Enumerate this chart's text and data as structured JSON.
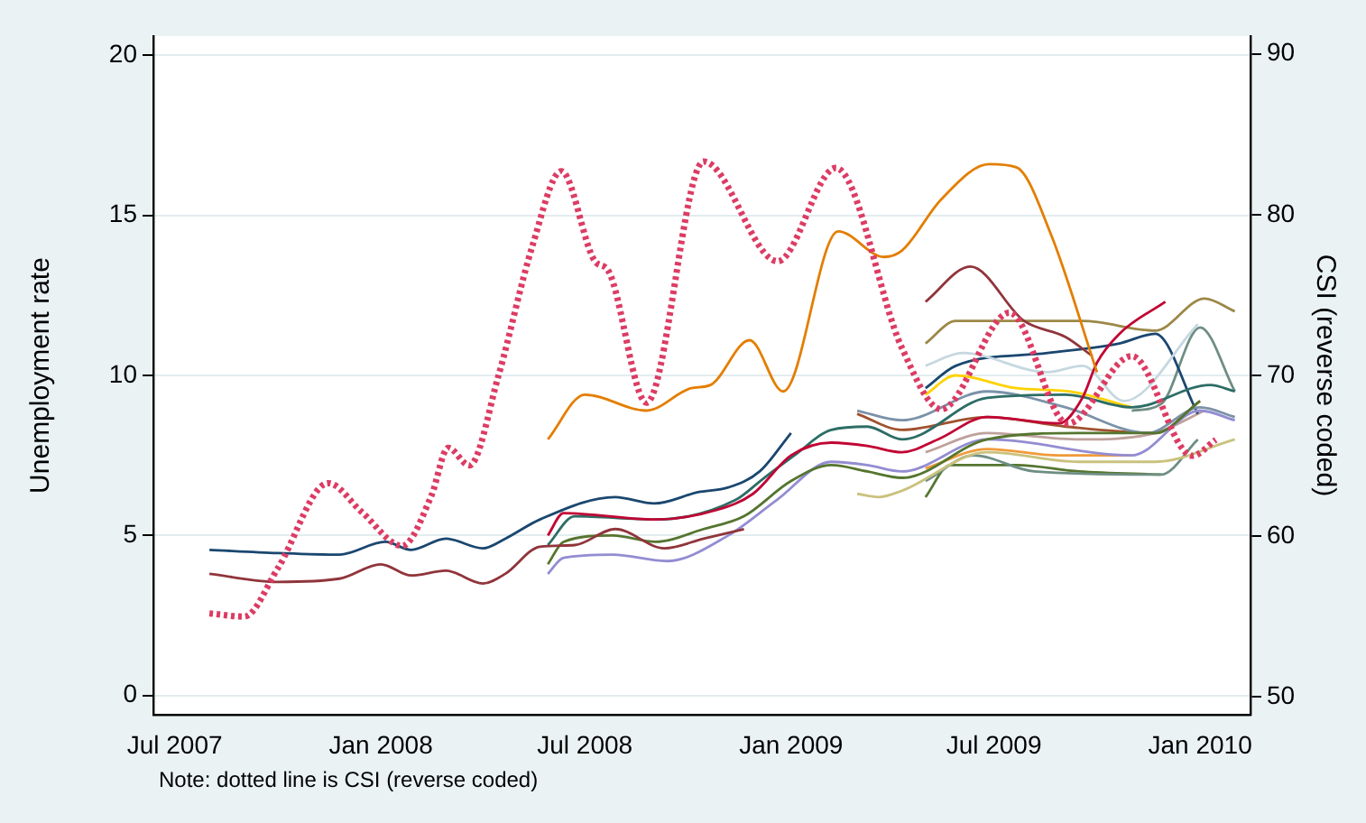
{
  "chart_data": {
    "type": "line",
    "ylabel": "Unemployment rate",
    "y2label": "CSI (reverse coded)",
    "annotations": [
      "Note: dotted line is CSI (reverse coded)"
    ],
    "xlim": [
      "2007-06-12",
      "2010-02-15"
    ],
    "xticks": [
      {
        "value": "2007-07",
        "label": "Jul 2007"
      },
      {
        "value": "2008-01",
        "label": "Jan 2008"
      },
      {
        "value": "2008-07",
        "label": "Jul 2008"
      },
      {
        "value": "2009-01",
        "label": "Jan 2009"
      },
      {
        "value": "2009-07",
        "label": "Jul 2009"
      },
      {
        "value": "2010-01",
        "label": "Jan 2010"
      }
    ],
    "ylim": [
      -0.6,
      20.6
    ],
    "yticks": [
      0,
      5,
      10,
      15,
      20
    ],
    "y2lim": [
      48.9,
      91.1
    ],
    "y2ticks": [
      50,
      60,
      70,
      80,
      90
    ],
    "grid": "y",
    "legend": false,
    "marker": "none",
    "series": [
      {
        "color": "#dc3c64",
        "axis": "y2",
        "line_style": "dotted",
        "x": [
          "2007-08-01",
          "2007-09-01",
          "2007-10-01",
          "2007-11-15",
          "2007-12-15",
          "2008-01-20",
          "2008-02-15",
          "2008-03-01",
          "2008-03-20",
          "2008-04-15",
          "2008-05-15",
          "2008-06-10",
          "2008-07-10",
          "2008-07-22",
          "2008-08-25",
          "2008-10-15",
          "2008-12-20",
          "2009-02-10",
          "2009-04-10",
          "2009-05-15",
          "2009-07-15",
          "2009-09-05",
          "2009-11-01",
          "2009-12-25",
          "2010-01-15"
        ],
        "values": [
          55.2,
          55.0,
          58,
          63.3,
          61.5,
          59.4,
          62.5,
          65.5,
          64.4,
          70,
          78,
          82.7,
          77.1,
          76.5,
          68.3,
          83.3,
          77.1,
          82.9,
          71.7,
          67.9,
          73.9,
          67,
          71.2,
          65.0,
          66.0
        ]
      },
      {
        "color": "#1a476f",
        "x": [
          "2007-08-01",
          "2007-10-01",
          "2007-11-25",
          "2008-01-05",
          "2008-01-28",
          "2008-02-28",
          "2008-04-01",
          "2008-04-21",
          "2008-05-22",
          "2008-07-28",
          "2008-09-01",
          "2008-10-10",
          "2008-11-06",
          "2008-12-04",
          "2009-01-01"
        ],
        "values": [
          4.55,
          4.45,
          4.4,
          4.8,
          4.55,
          4.9,
          4.6,
          4.9,
          5.5,
          6.2,
          6.0,
          6.35,
          6.5,
          7.0,
          8.2
        ]
      },
      {
        "color": "#90353b",
        "x": [
          "2007-08-01",
          "2007-10-01",
          "2007-11-25",
          "2008-01-01",
          "2008-01-28",
          "2008-02-28",
          "2008-04-01",
          "2008-04-21",
          "2008-05-22",
          "2008-06-22",
          "2008-07-28",
          "2008-09-10",
          "2008-10-15",
          "2008-11-20"
        ],
        "values": [
          3.8,
          3.55,
          3.65,
          4.1,
          3.75,
          3.9,
          3.5,
          3.8,
          4.65,
          4.7,
          5.2,
          4.6,
          4.9,
          5.2
        ]
      },
      {
        "color": "#e37e00",
        "x": [
          "2008-05-29",
          "2008-07-01",
          "2008-08-25",
          "2008-10-04",
          "2008-10-21",
          "2008-11-25",
          "2008-12-25",
          "2009-02-12",
          "2009-03-25",
          "2009-04-10",
          "2009-05-15",
          "2009-06-27",
          "2009-07-21",
          "2009-08-21",
          "2009-10-01"
        ],
        "values": [
          8.0,
          9.4,
          8.9,
          9.6,
          9.7,
          11.1,
          9.5,
          14.5,
          13.7,
          13.9,
          15.5,
          16.6,
          16.5,
          14.4,
          10.1
        ]
      },
      {
        "color": "#c10534",
        "x": [
          "2008-05-29",
          "2008-06-12",
          "2008-09-02",
          "2008-10-27",
          "2008-11-28",
          "2009-01-01",
          "2009-02-06",
          "2009-03-10",
          "2009-04-10",
          "2009-05-12",
          "2009-06-25",
          "2009-08-28",
          "2009-09-18",
          "2009-10-01",
          "2009-10-21",
          "2009-12-01"
        ],
        "values": [
          5.0,
          5.7,
          5.5,
          5.8,
          6.3,
          7.5,
          7.9,
          7.8,
          7.6,
          8.0,
          8.7,
          8.5,
          9.3,
          10.4,
          11.3,
          12.3
        ]
      },
      {
        "color": "#2d6d66",
        "x": [
          "2008-05-29",
          "2008-06-22",
          "2008-09-02",
          "2008-11-12",
          "2008-12-08",
          "2009-01-04",
          "2009-02-06",
          "2009-03-10",
          "2009-04-10",
          "2009-06-25",
          "2009-09-03",
          "2009-11-01",
          "2010-01-10",
          "2010-02-01"
        ],
        "values": [
          4.7,
          5.6,
          5.5,
          6.1,
          6.8,
          7.5,
          8.3,
          8.4,
          8.0,
          9.3,
          9.4,
          9.0,
          9.7,
          9.5
        ]
      },
      {
        "color": "#55752f",
        "x": [
          "2008-05-29",
          "2008-06-12",
          "2008-07-26",
          "2008-09-02",
          "2008-10-15",
          "2008-11-20",
          "2009-01-01",
          "2009-02-06",
          "2009-03-10",
          "2009-04-10",
          "2009-06-25",
          "2009-09-15",
          "2009-11-22",
          "2010-01-01"
        ],
        "values": [
          4.1,
          4.8,
          5.0,
          4.8,
          5.2,
          5.6,
          6.7,
          7.2,
          7.0,
          6.8,
          8.0,
          8.2,
          8.2,
          9.2
        ]
      },
      {
        "color": "#938dd2",
        "x": [
          "2008-05-29",
          "2008-06-12",
          "2008-07-26",
          "2008-09-12",
          "2008-11-06",
          "2008-12-19",
          "2009-02-06",
          "2009-03-10",
          "2009-04-10",
          "2009-06-25",
          "2009-11-01",
          "2010-01-01",
          "2010-02-01"
        ],
        "values": [
          3.8,
          4.3,
          4.4,
          4.2,
          5.0,
          6.1,
          7.3,
          7.2,
          7.0,
          8.0,
          7.5,
          8.9,
          8.6
        ]
      },
      {
        "color": "#7b92a8",
        "x": [
          "2009-03-01",
          "2009-04-10",
          "2009-06-25",
          "2009-09-03",
          "2009-11-15",
          "2010-01-01",
          "2010-02-01"
        ],
        "values": [
          8.9,
          8.6,
          9.5,
          9.0,
          8.2,
          9.0,
          8.7
        ]
      },
      {
        "color": "#a0522d",
        "x": [
          "2009-03-01",
          "2009-04-10",
          "2009-06-25",
          "2009-09-03",
          "2009-11-22",
          "2010-01-01"
        ],
        "values": [
          8.8,
          8.3,
          8.7,
          8.4,
          8.2,
          9.2
        ]
      },
      {
        "color": "#cac27e",
        "x": [
          "2009-03-01",
          "2009-03-20",
          "2009-04-10",
          "2009-06-25",
          "2009-09-15",
          "2009-11-22",
          "2010-02-01"
        ],
        "values": [
          6.3,
          6.2,
          6.4,
          7.6,
          7.3,
          7.3,
          8.0
        ]
      },
      {
        "color": "#90353b",
        "x": [
          "2009-05-01",
          "2009-06-10",
          "2009-07-28",
          "2009-09-03",
          "2009-09-27"
        ],
        "values": [
          12.3,
          13.4,
          11.7,
          11.2,
          10.6
        ]
      },
      {
        "color": "#9c8847",
        "x": [
          "2009-05-01",
          "2009-05-28",
          "2009-09-18",
          "2009-11-22",
          "2010-01-05",
          "2010-02-01"
        ],
        "values": [
          11.0,
          11.7,
          11.7,
          11.4,
          12.4,
          12.0
        ]
      },
      {
        "color": "#c6d8e0",
        "x": [
          "2009-05-01",
          "2009-06-03",
          "2009-08-18",
          "2009-09-18",
          "2009-10-25",
          "2009-12-30"
        ],
        "values": [
          10.3,
          10.7,
          10.1,
          10.3,
          9.2,
          11.6
        ]
      },
      {
        "color": "#1a476f",
        "x": [
          "2009-05-01",
          "2009-05-28",
          "2009-08-18",
          "2009-10-21",
          "2009-11-22",
          "2009-12-30"
        ],
        "values": [
          9.6,
          10.3,
          10.7,
          11.0,
          11.3,
          8.8
        ]
      },
      {
        "color": "#ffd200",
        "x": [
          "2009-05-01",
          "2009-05-28",
          "2009-07-21",
          "2009-09-06",
          "2009-11-01"
        ],
        "values": [
          9.4,
          10.0,
          9.6,
          9.5,
          9.0
        ]
      },
      {
        "color": "#6e8e84",
        "x": [
          "2009-11-01",
          "2009-11-27",
          "2010-01-01",
          "2010-02-01"
        ],
        "values": [
          8.9,
          9.1,
          11.5,
          9.5
        ]
      },
      {
        "color": "#6e8e84",
        "x": [
          "2009-05-01",
          "2009-06-13",
          "2009-08-06",
          "2009-11-27",
          "2009-12-30"
        ],
        "values": [
          6.7,
          7.5,
          7.0,
          6.9,
          8.0
        ]
      },
      {
        "color": "#55752f",
        "x": [
          "2009-05-01",
          "2009-05-23",
          "2009-07-21",
          "2009-09-15",
          "2009-11-27"
        ],
        "values": [
          6.2,
          7.2,
          7.2,
          7.0,
          6.9
        ]
      },
      {
        "color": "#f09a3a",
        "x": [
          "2009-05-01",
          "2009-06-25",
          "2009-08-28",
          "2009-11-01"
        ],
        "values": [
          7.1,
          7.7,
          7.5,
          7.5
        ]
      },
      {
        "color": "#bfa19c",
        "x": [
          "2009-05-01",
          "2009-06-25",
          "2009-09-15",
          "2009-11-22",
          "2010-01-05"
        ],
        "values": [
          7.6,
          8.2,
          8.0,
          8.2,
          8.9
        ]
      }
    ]
  }
}
